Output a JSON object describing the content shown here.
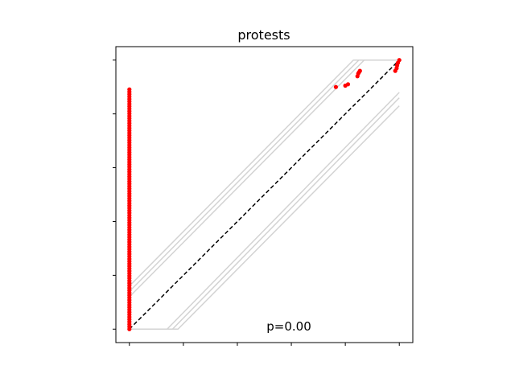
{
  "chart_data": {
    "type": "scatter",
    "title": "protests",
    "xlabel": "",
    "ylabel": "",
    "xlim": [
      -0.05,
      1.05
    ],
    "ylim": [
      -0.05,
      1.05
    ],
    "xticks": [
      0,
      0.2,
      0.4,
      0.6,
      0.8,
      1.0
    ],
    "yticks": [
      0,
      0.2,
      0.4,
      0.6,
      0.8,
      1.0
    ],
    "tick_labels_visible": false,
    "grid": false,
    "annotation": "p=0.00",
    "colors": {
      "points": "#ff0000",
      "diagonal": "#000000",
      "envelope": "#d3d3d3",
      "axes": "#000000"
    },
    "reference_line": {
      "style": "dashed",
      "x": [
        0,
        1
      ],
      "y": [
        0,
        1
      ]
    },
    "envelope_curves": [
      {
        "x": [
          0,
          0.83,
          1.0
        ],
        "y": [
          0.16,
          1.0,
          1.0
        ]
      },
      {
        "x": [
          0,
          0.85,
          1.0
        ],
        "y": [
          0.14,
          1.0,
          1.0
        ]
      },
      {
        "x": [
          0,
          0.87,
          1.0
        ],
        "y": [
          0.12,
          1.0,
          1.0
        ]
      },
      {
        "x": [
          0,
          0.14,
          1.0
        ],
        "y": [
          0,
          0,
          0.88
        ]
      },
      {
        "x": [
          0,
          0.16,
          1.0
        ],
        "y": [
          0,
          0,
          0.86
        ]
      },
      {
        "x": [
          0,
          0.18,
          1.0
        ],
        "y": [
          0,
          0,
          0.83
        ]
      }
    ],
    "series": [
      {
        "x": [
          0,
          0,
          0,
          0,
          0,
          0,
          0,
          0,
          0,
          0,
          0,
          0,
          0,
          0,
          0,
          0,
          0,
          0,
          0,
          0,
          0,
          0,
          0,
          0,
          0,
          0,
          0,
          0,
          0,
          0,
          0,
          0,
          0,
          0,
          0,
          0,
          0,
          0,
          0,
          0,
          0,
          0,
          0,
          0,
          0,
          0,
          0,
          0,
          0,
          0,
          0,
          0,
          0,
          0,
          0,
          0,
          0,
          0,
          0,
          0,
          0,
          0,
          0,
          0,
          0,
          0,
          0,
          0,
          0,
          0,
          0,
          0,
          0,
          0,
          0,
          0,
          0,
          0,
          0,
          0,
          0,
          0,
          0,
          0,
          0,
          0,
          0,
          0,
          0,
          0,
          0,
          0,
          0,
          0,
          0,
          0,
          0,
          0,
          0,
          0,
          0.765,
          0.8,
          0.81,
          0.845,
          0.848,
          0.851,
          0.854,
          0.985,
          0.99,
          0.992,
          0.995,
          1.0
        ],
        "y": [
          0,
          0.009,
          0.018,
          0.027,
          0.036,
          0.045,
          0.054,
          0.063,
          0.072,
          0.081,
          0.09,
          0.099,
          0.108,
          0.117,
          0.126,
          0.135,
          0.144,
          0.153,
          0.162,
          0.171,
          0.18,
          0.189,
          0.198,
          0.207,
          0.216,
          0.225,
          0.234,
          0.243,
          0.252,
          0.261,
          0.27,
          0.279,
          0.288,
          0.297,
          0.306,
          0.315,
          0.324,
          0.333,
          0.342,
          0.351,
          0.36,
          0.369,
          0.378,
          0.387,
          0.396,
          0.405,
          0.414,
          0.423,
          0.432,
          0.441,
          0.45,
          0.459,
          0.468,
          0.477,
          0.486,
          0.495,
          0.504,
          0.513,
          0.522,
          0.531,
          0.54,
          0.549,
          0.558,
          0.567,
          0.576,
          0.585,
          0.594,
          0.603,
          0.612,
          0.621,
          0.63,
          0.639,
          0.648,
          0.657,
          0.666,
          0.675,
          0.684,
          0.693,
          0.702,
          0.711,
          0.72,
          0.729,
          0.738,
          0.747,
          0.756,
          0.765,
          0.774,
          0.783,
          0.792,
          0.801,
          0.81,
          0.819,
          0.828,
          0.837,
          0.846,
          0.855,
          0.864,
          0.873,
          0.882,
          0.891,
          0.9,
          0.905,
          0.91,
          0.94,
          0.95,
          0.955,
          0.96,
          0.96,
          0.97,
          0.98,
          0.99,
          1.0
        ]
      }
    ]
  }
}
